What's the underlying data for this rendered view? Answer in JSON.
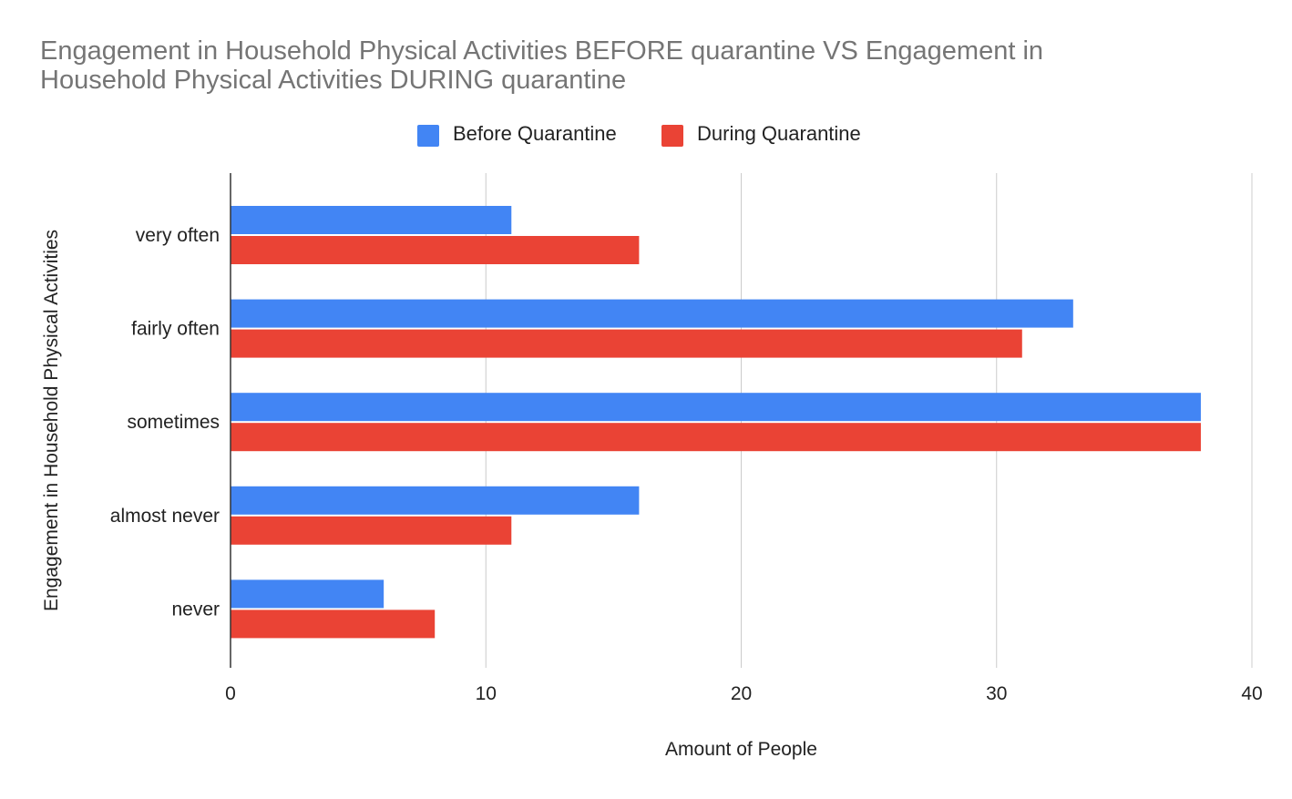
{
  "chart_data": {
    "type": "bar",
    "orientation": "horizontal",
    "title_lines": [
      "Engagement in Household Physical Activities BEFORE quarantine VS Engagement in",
      "Household Physical Activities DURING quarantine"
    ],
    "xlabel": "Amount of People",
    "ylabel": "Engagement in Household Physical Activities",
    "categories": [
      "very often",
      "fairly often",
      "sometimes",
      "almost never",
      "never"
    ],
    "series": [
      {
        "name": "Before Quarantine",
        "color": "#4285f4",
        "values": [
          11,
          33,
          38,
          16,
          6
        ]
      },
      {
        "name": "During Quarantine",
        "color": "#ea4335",
        "values": [
          16,
          31,
          38,
          11,
          8
        ]
      }
    ],
    "xlim": [
      0,
      40
    ],
    "xticks": [
      "0",
      "10",
      "20",
      "30",
      "40"
    ],
    "grid": true,
    "legend_position": "top-center"
  }
}
